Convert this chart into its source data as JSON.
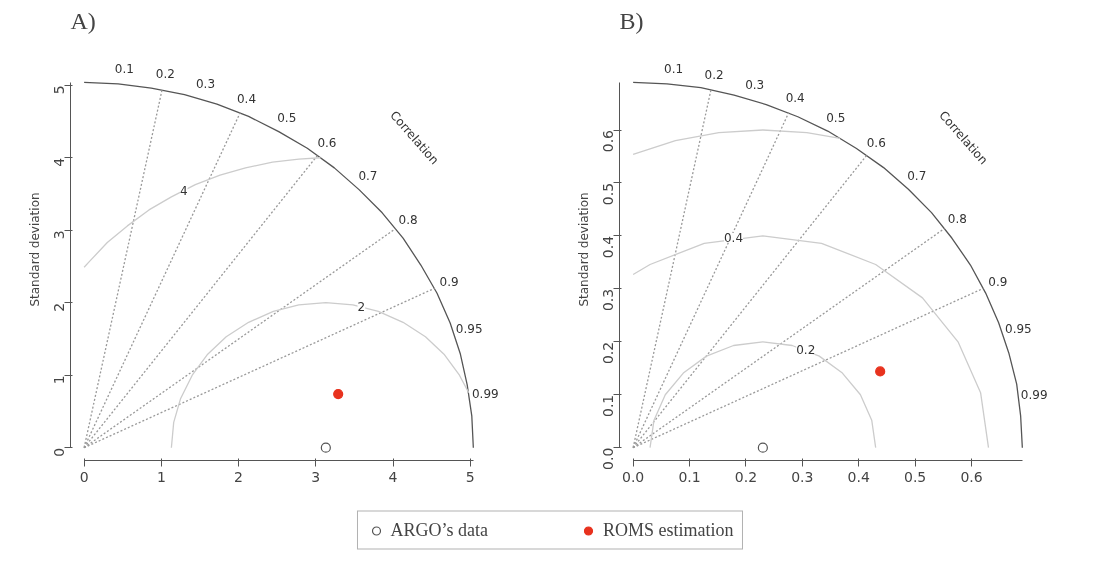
{
  "chart_data": [
    {
      "type": "scatter",
      "title": "A)",
      "ylabel": "Standard deviation",
      "xlim": [
        0,
        5.04
      ],
      "ylim": [
        0,
        5.04
      ],
      "xticks": [
        0,
        1,
        2,
        3,
        4,
        5
      ],
      "yticks": [
        0,
        1,
        2,
        3,
        4,
        5
      ],
      "grid": false,
      "legend": "bottom",
      "series": [
        {
          "name": "ARGO’s data",
          "color": "#555555",
          "marker": "circle",
          "x": [
            3.13
          ],
          "values": [
            0
          ]
        },
        {
          "name": "ROMS estimation",
          "color": "#e8321e",
          "marker": "circle",
          "x": [
            3.29
          ],
          "values": [
            0.74
          ]
        },
        {
          "type": "line",
          "color": "#555555",
          "line_style": "solid",
          "x": [
            5.04,
            5.02,
            4.96,
            4.87,
            4.74,
            4.57,
            4.36,
            4.13,
            3.86,
            3.56,
            3.24,
            2.89,
            2.52,
            2.13,
            1.72,
            1.3,
            0.87,
            0.44,
            0
          ],
          "values": [
            0,
            0.44,
            0.87,
            1.3,
            1.72,
            2.13,
            2.52,
            2.89,
            3.24,
            3.56,
            3.86,
            4.13,
            4.36,
            4.57,
            4.74,
            4.87,
            4.96,
            5.02,
            5.04
          ]
        },
        {
          "type": "line",
          "color": "#999999",
          "line_style": "dotted",
          "x": [
            0,
            1.01
          ],
          "values": [
            0,
            4.94
          ]
        },
        {
          "type": "line",
          "color": "#999999",
          "line_style": "dotted",
          "x": [
            0,
            2.02
          ],
          "values": [
            0,
            4.62
          ]
        },
        {
          "type": "line",
          "color": "#999999",
          "line_style": "dotted",
          "x": [
            0,
            3.02
          ],
          "values": [
            0,
            4.03
          ]
        },
        {
          "type": "line",
          "color": "#999999",
          "line_style": "dotted",
          "x": [
            0,
            4.03
          ],
          "values": [
            0,
            3.02
          ]
        },
        {
          "type": "line",
          "color": "#999999",
          "line_style": "dotted",
          "x": [
            0,
            4.54
          ],
          "values": [
            0,
            2.2
          ]
        },
        {
          "type": "line",
          "color": "#cccccc",
          "line_style": "solid",
          "x": [
            0.0,
            0.07,
            0.3,
            0.56,
            0.84,
            1.13,
            1.44,
            1.76,
            2.09,
            2.44,
            2.78,
            3.06
          ],
          "values": [
            2.49,
            2.57,
            2.83,
            3.06,
            3.28,
            3.46,
            3.63,
            3.76,
            3.86,
            3.94,
            3.98,
            4.0
          ]
        },
        {
          "type": "line",
          "color": "#cccccc",
          "line_style": "solid",
          "x": [
            1.13,
            1.16,
            1.25,
            1.4,
            1.6,
            1.84,
            2.13,
            2.45,
            2.78,
            3.13,
            3.48,
            3.81,
            4.13,
            4.42,
            4.66,
            4.86,
            4.98
          ],
          "values": [
            0,
            0.35,
            0.68,
            1.0,
            1.29,
            1.53,
            1.73,
            1.88,
            1.97,
            2.0,
            1.97,
            1.88,
            1.73,
            1.53,
            1.29,
            1.0,
            0.76
          ]
        }
      ],
      "annotations": [
        {
          "text": "0.1",
          "x": 0.5,
          "y": 5.01
        },
        {
          "text": "0.2",
          "x": 1.01,
          "y": 4.94
        },
        {
          "text": "0.3",
          "x": 1.51,
          "y": 4.81
        },
        {
          "text": "0.4",
          "x": 2.02,
          "y": 4.62
        },
        {
          "text": "0.5",
          "x": 2.52,
          "y": 4.36
        },
        {
          "text": "0.6",
          "x": 3.02,
          "y": 4.03
        },
        {
          "text": "0.7",
          "x": 3.53,
          "y": 3.6
        },
        {
          "text": "0.8",
          "x": 4.03,
          "y": 3.02
        },
        {
          "text": "0.9",
          "x": 4.54,
          "y": 2.2
        },
        {
          "text": "0.95",
          "x": 4.79,
          "y": 1.57
        },
        {
          "text": "0.99",
          "x": 4.99,
          "y": 0.71
        },
        {
          "text": "4",
          "x": 1.29,
          "y": 3.55
        },
        {
          "text": "2",
          "x": 3.59,
          "y": 1.95
        },
        "Correlation"
      ]
    },
    {
      "type": "scatter",
      "title": "B)",
      "ylabel": "Standard deviation",
      "xlim": [
        0,
        0.69
      ],
      "ylim": [
        0,
        0.69
      ],
      "xticks": [
        {
          "value": 0,
          "label": "0.0"
        },
        0.1,
        0.2,
        0.3,
        0.4,
        0.5,
        0.6
      ],
      "yticks": [
        {
          "value": 0,
          "label": "0.0"
        },
        0.1,
        0.2,
        0.3,
        0.4,
        0.5,
        0.6
      ],
      "grid": false,
      "legend": "bottom",
      "series": [
        {
          "name": "ARGO’s data",
          "color": "#555555",
          "marker": "circle",
          "x": [
            0.23
          ],
          "values": [
            0
          ]
        },
        {
          "name": "ROMS estimation",
          "color": "#e8321e",
          "marker": "circle",
          "x": [
            0.438
          ],
          "values": [
            0.144
          ]
        },
        {
          "type": "line",
          "color": "#555555",
          "line_style": "solid",
          "x": [
            0.69,
            0.687,
            0.68,
            0.666,
            0.648,
            0.625,
            0.598,
            0.565,
            0.529,
            0.488,
            0.444,
            0.396,
            0.345,
            0.292,
            0.236,
            0.179,
            0.12,
            0.06,
            0
          ],
          "values": [
            0,
            0.06,
            0.12,
            0.179,
            0.236,
            0.292,
            0.345,
            0.396,
            0.444,
            0.488,
            0.529,
            0.565,
            0.598,
            0.625,
            0.648,
            0.666,
            0.68,
            0.687,
            0.69
          ]
        },
        {
          "type": "line",
          "color": "#999999",
          "line_style": "dotted",
          "x": [
            0,
            0.138
          ],
          "values": [
            0,
            0.676
          ]
        },
        {
          "type": "line",
          "color": "#999999",
          "line_style": "dotted",
          "x": [
            0,
            0.276
          ],
          "values": [
            0,
            0.633
          ]
        },
        {
          "type": "line",
          "color": "#999999",
          "line_style": "dotted",
          "x": [
            0,
            0.414
          ],
          "values": [
            0,
            0.552
          ]
        },
        {
          "type": "line",
          "color": "#999999",
          "line_style": "dotted",
          "x": [
            0,
            0.552
          ],
          "values": [
            0,
            0.414
          ]
        },
        {
          "type": "line",
          "color": "#999999",
          "line_style": "dotted",
          "x": [
            0,
            0.621
          ],
          "values": [
            0,
            0.301
          ]
        },
        {
          "type": "line",
          "color": "#cccccc",
          "line_style": "solid",
          "x": [
            0.03,
            0.037,
            0.057,
            0.089,
            0.13,
            0.178,
            0.23,
            0.282,
            0.33,
            0.371,
            0.403,
            0.423,
            0.43
          ],
          "values": [
            0,
            0.052,
            0.1,
            0.141,
            0.173,
            0.193,
            0.2,
            0.193,
            0.173,
            0.141,
            0.1,
            0.052,
            0
          ]
        },
        {
          "type": "line",
          "color": "#cccccc",
          "line_style": "solid",
          "x": [
            0.0,
            0.03,
            0.126,
            0.23,
            0.334,
            0.43,
            0.513,
            0.576,
            0.616,
            0.63
          ],
          "values": [
            0.327,
            0.346,
            0.386,
            0.4,
            0.386,
            0.346,
            0.283,
            0.2,
            0.104,
            0
          ]
        },
        {
          "type": "line",
          "color": "#cccccc",
          "line_style": "solid",
          "x": [
            0.0,
            0.075,
            0.152,
            0.23,
            0.308,
            0.367
          ],
          "values": [
            0.554,
            0.58,
            0.595,
            0.6,
            0.595,
            0.584
          ]
        }
      ],
      "annotations": [
        {
          "text": "0.1",
          "x": 0.069,
          "y": 0.687
        },
        {
          "text": "0.2",
          "x": 0.138,
          "y": 0.676
        },
        {
          "text": "0.3",
          "x": 0.207,
          "y": 0.658
        },
        {
          "text": "0.4",
          "x": 0.276,
          "y": 0.633
        },
        {
          "text": "0.5",
          "x": 0.345,
          "y": 0.598
        },
        {
          "text": "0.6",
          "x": 0.414,
          "y": 0.552
        },
        {
          "text": "0.7",
          "x": 0.483,
          "y": 0.493
        },
        {
          "text": "0.8",
          "x": 0.552,
          "y": 0.414
        },
        {
          "text": "0.9",
          "x": 0.621,
          "y": 0.301
        },
        {
          "text": "0.95",
          "x": 0.656,
          "y": 0.215
        },
        {
          "text": "0.99",
          "x": 0.683,
          "y": 0.097
        },
        {
          "text": "0.4",
          "x": 0.178,
          "y": 0.397
        },
        {
          "text": "0.2",
          "x": 0.306,
          "y": 0.185
        },
        "Correlation"
      ]
    }
  ]
}
